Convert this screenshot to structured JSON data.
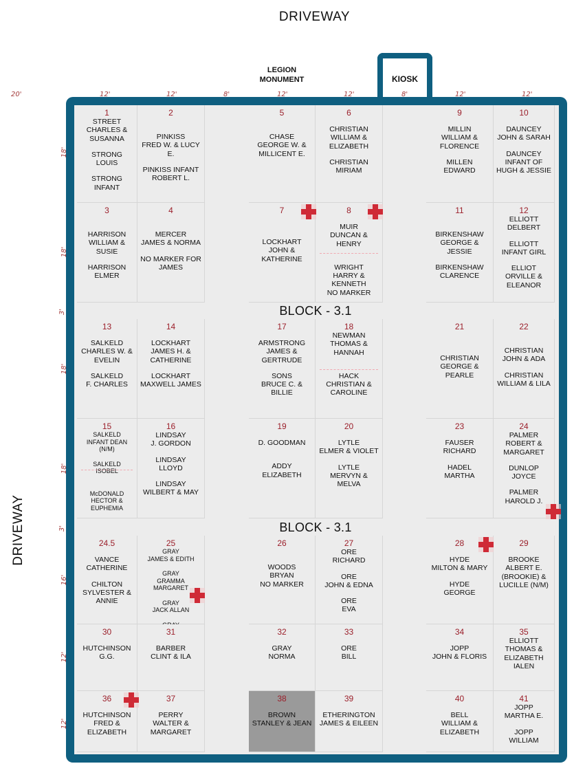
{
  "driveway_top": "DRIVEWAY",
  "driveway_side": "DRIVEWAY",
  "legion_monument": [
    "LEGION",
    "MONUMENT"
  ],
  "kiosk": "KIOSK",
  "block_labels": [
    "BLOCK - 3.1",
    "BLOCK - 3.1"
  ],
  "dimensions_top": [
    "20'",
    "12'",
    "12'",
    "8'",
    "12'",
    "12'",
    "8'",
    "12'",
    "12'"
  ],
  "dimensions_side": [
    "18'",
    "18'",
    "3'",
    "18'",
    "18'",
    "3'",
    "16'",
    "12'",
    "12'"
  ],
  "colors": {
    "frame": "#0f5f80",
    "plot_number": "#9b1f2a",
    "marker": "#cf2a36"
  },
  "plots": [
    {
      "num": "1",
      "lines": [
        "STREET",
        "CHARLES &",
        "SUSANNA",
        "",
        "STRONG",
        "LOUIS",
        "",
        "STRONG",
        "INFANT"
      ]
    },
    {
      "num": "2",
      "lines": [
        "",
        "",
        "PINKISS",
        "FRED W. & LUCY E.",
        "",
        "PINKISS INFANT",
        "ROBERT L."
      ]
    },
    {
      "num": "5",
      "lines": [
        "",
        "",
        "CHASE",
        "GEORGE W. &",
        "MILLICENT E."
      ]
    },
    {
      "num": "6",
      "lines": [
        "",
        "CHRISTIAN",
        "WILLIAM &",
        "ELIZABETH",
        "",
        "CHRISTIAN",
        "MIRIAM"
      ]
    },
    {
      "num": "9",
      "lines": [
        "",
        "MILLIN",
        "WILLIAM &",
        "FLORENCE",
        "",
        "MILLEN",
        "EDWARD"
      ]
    },
    {
      "num": "10",
      "lines": [
        "",
        "DAUNCEY",
        "JOHN & SARAH",
        "",
        "DAUNCEY",
        "INFANT OF",
        "HUGH & JESSIE"
      ]
    },
    {
      "num": "3",
      "lines": [
        "",
        "",
        "HARRISON",
        "WILLIAM & SUSIE",
        "",
        "HARRISON",
        "ELMER"
      ]
    },
    {
      "num": "4",
      "lines": [
        "",
        "",
        "MERCER",
        "JAMES & NORMA",
        "",
        "NO MARKER FOR",
        "JAMES"
      ]
    },
    {
      "num": "7",
      "lines": [
        "",
        "",
        "",
        "LOCKHART",
        "JOHN &",
        "KATHERINE"
      ]
    },
    {
      "num": "8",
      "lines": [
        "",
        "MUIR",
        "DUNCAN & HENRY",
        "",
        "",
        "WRIGHT",
        "HARRY &",
        "KENNETH",
        "NO MARKER"
      ]
    },
    {
      "num": "11",
      "lines": [
        "",
        "",
        "BIRKENSHAW",
        "GEORGE & JESSIE",
        "",
        "BIRKENSHAW",
        "CLARENCE"
      ]
    },
    {
      "num": "12",
      "lines": [
        "ELLIOTT",
        "DELBERT",
        "",
        "ELLIOTT",
        "INFANT GIRL",
        "",
        "ELLIOT",
        "ORVILLE &",
        "ELEANOR"
      ]
    },
    {
      "num": "13",
      "lines": [
        "",
        "SALKELD",
        "CHARLES W. &",
        "EVELIN",
        "",
        "SALKELD",
        "F. CHARLES"
      ]
    },
    {
      "num": "14",
      "lines": [
        "",
        "LOCKHART",
        "JAMES H. &",
        "CATHERINE",
        "",
        "LOCKHART",
        "MAXWELL JAMES"
      ]
    },
    {
      "num": "17",
      "lines": [
        "",
        "ARMSTRONG",
        "JAMES &",
        "GERTRUDE",
        "",
        "SONS",
        "BRUCE C. &",
        "BILLIE"
      ]
    },
    {
      "num": "18",
      "lines": [
        "NEWMAN",
        "THOMAS &",
        "HANNAH",
        "",
        "",
        "HACK",
        "CHRISTIAN &",
        "CAROLINE"
      ]
    },
    {
      "num": "21",
      "lines": [
        "",
        "",
        "",
        "CHRISTIAN",
        "GEORGE &",
        "PEARLE"
      ]
    },
    {
      "num": "22",
      "lines": [
        "",
        "",
        "CHRISTIAN",
        "JOHN & ADA",
        "",
        "CHRISTIAN",
        "WILLIAM & LILA"
      ]
    },
    {
      "num": "15",
      "lines": [
        "SALKELD",
        "INFANT DEAN (N/M)",
        "",
        "SALKELD",
        "ISOBEL",
        "",
        "",
        "McDONALD",
        "HECTOR &",
        "EUPHEMIA"
      ]
    },
    {
      "num": "16",
      "lines": [
        "LINDSAY",
        "J. GORDON",
        "",
        "LINDSAY",
        "LLOYD",
        "",
        "LINDSAY",
        "WILBERT & MAY"
      ]
    },
    {
      "num": "19",
      "lines": [
        "",
        "D. GOODMAN",
        "",
        "",
        "ADDY",
        "ELIZABETH"
      ]
    },
    {
      "num": "20",
      "lines": [
        "",
        "LYTLE",
        "ELMER & VIOLET",
        "",
        "LYTLE",
        "MERVYN & MELVA"
      ]
    },
    {
      "num": "23",
      "lines": [
        "",
        "FAUSER",
        "RICHARD",
        "",
        "HADEL",
        "MARTHA"
      ]
    },
    {
      "num": "24",
      "lines": [
        "PALMER",
        "ROBERT &",
        "MARGARET",
        "",
        "DUNLOP",
        "JOYCE",
        "",
        "PALMER",
        "HAROLD J."
      ]
    },
    {
      "num": "24.5",
      "lines": [
        "",
        "VANCE",
        "CATHERINE",
        "",
        "CHILTON",
        "SYLVESTER &",
        "ANNIE"
      ]
    },
    {
      "num": "25",
      "lines": [
        "GRAY",
        "JAMES & EDITH",
        "",
        "GRAY",
        "GRAMMA MARGARET",
        "",
        "GRAY",
        "JACK ALLAN",
        "",
        "GRAY",
        "KENNETH GORDON"
      ]
    },
    {
      "num": "26",
      "lines": [
        "",
        "",
        "WOODS",
        "BRYAN",
        "NO MARKER"
      ]
    },
    {
      "num": "27",
      "lines": [
        "ORE",
        "RICHARD",
        "",
        "ORE",
        "JOHN & EDNA",
        "",
        "ORE",
        "EVA"
      ]
    },
    {
      "num": "28",
      "lines": [
        "",
        "HYDE",
        "MILTON & MARY",
        "",
        "HYDE",
        "GEORGE"
      ]
    },
    {
      "num": "29",
      "lines": [
        "",
        "BROOKE",
        "ALBERT E.",
        "(BROOKIE) &",
        "LUCILLE (N/M)"
      ]
    },
    {
      "num": "30",
      "lines": [
        "",
        "HUTCHINSON",
        "G.G."
      ]
    },
    {
      "num": "31",
      "lines": [
        "",
        "BARBER",
        "CLINT & ILA"
      ]
    },
    {
      "num": "32",
      "lines": [
        "",
        "GRAY",
        "NORMA"
      ]
    },
    {
      "num": "33",
      "lines": [
        "",
        "ORE",
        "BILL"
      ]
    },
    {
      "num": "34",
      "lines": [
        "",
        "JOPP",
        "JOHN & FLORIS"
      ]
    },
    {
      "num": "35",
      "lines": [
        "ELLIOTT",
        "THOMAS &",
        "ELIZABETH IALEN"
      ]
    },
    {
      "num": "36",
      "lines": [
        "",
        "HUTCHINSON",
        "FRED &",
        "ELIZABETH"
      ]
    },
    {
      "num": "37",
      "lines": [
        "",
        "PERRY",
        "WALTER &",
        "MARGARET"
      ]
    },
    {
      "num": "38",
      "lines": [
        "",
        "BROWN",
        "STANLEY & JEAN"
      ]
    },
    {
      "num": "39",
      "lines": [
        "",
        "ETHERINGTON",
        "JAMES & EILEEN"
      ]
    },
    {
      "num": "40",
      "lines": [
        "",
        "BELL",
        "WILLIAM &",
        "ELIZABETH"
      ]
    },
    {
      "num": "41",
      "lines": [
        "JOPP",
        "MARTHA E.",
        "",
        "JOPP",
        "WILLIAM"
      ]
    }
  ]
}
